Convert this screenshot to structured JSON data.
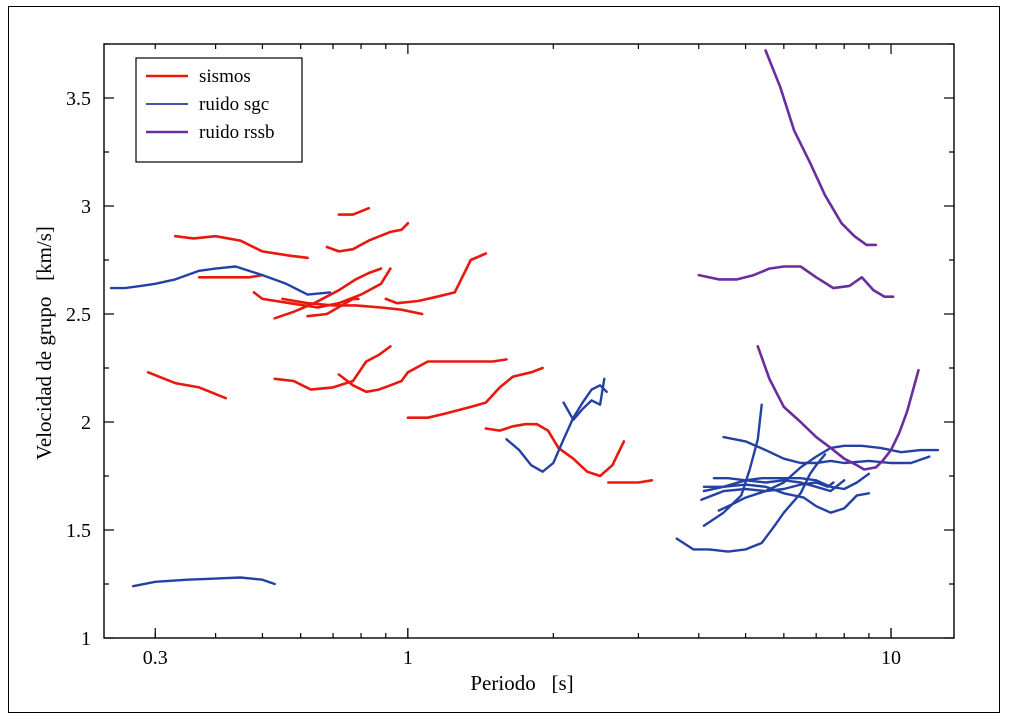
{
  "chart_data": {
    "type": "line",
    "xlabel": "Periodo   [s]",
    "ylabel": "Velocidad de grupo   [km/s]",
    "xscale": "log",
    "xlim": [
      0.235,
      13.5
    ],
    "ylim": [
      1.0,
      3.75
    ],
    "xticks": [
      {
        "value": 0.3,
        "label": "0.3"
      },
      {
        "value": 1,
        "label": "1"
      },
      {
        "value": 10,
        "label": "10"
      }
    ],
    "yticks": [
      {
        "value": 1,
        "label": "1"
      },
      {
        "value": 1.5,
        "label": "1.5"
      },
      {
        "value": 2,
        "label": "2"
      },
      {
        "value": 2.5,
        "label": "2.5"
      },
      {
        "value": 3,
        "label": "3"
      },
      {
        "value": 3.5,
        "label": "3.5"
      }
    ],
    "legend_position": "top-left",
    "grid": false,
    "series": [
      {
        "name": "sismos",
        "color": "#e8180f",
        "curves": [
          [
            [
              0.33,
              2.86
            ],
            [
              0.36,
              2.85
            ],
            [
              0.4,
              2.86
            ],
            [
              0.45,
              2.84
            ],
            [
              0.5,
              2.79
            ],
            [
              0.57,
              2.77
            ],
            [
              0.62,
              2.76
            ]
          ],
          [
            [
              0.72,
              2.96
            ],
            [
              0.77,
              2.96
            ],
            [
              0.83,
              2.99
            ]
          ],
          [
            [
              0.68,
              2.81
            ],
            [
              0.72,
              2.79
            ],
            [
              0.77,
              2.8
            ],
            [
              0.83,
              2.84
            ],
            [
              0.92,
              2.88
            ],
            [
              0.97,
              2.89
            ],
            [
              1.0,
              2.92
            ]
          ],
          [
            [
              0.37,
              2.67
            ],
            [
              0.42,
              2.67
            ],
            [
              0.47,
              2.67
            ],
            [
              0.5,
              2.68
            ]
          ],
          [
            [
              0.53,
              2.48
            ],
            [
              0.58,
              2.51
            ],
            [
              0.64,
              2.55
            ],
            [
              0.72,
              2.61
            ],
            [
              0.78,
              2.66
            ],
            [
              0.83,
              2.69
            ],
            [
              0.88,
              2.71
            ]
          ],
          [
            [
              0.48,
              2.6
            ],
            [
              0.5,
              2.57
            ],
            [
              0.57,
              2.55
            ],
            [
              0.65,
              2.53
            ],
            [
              0.72,
              2.55
            ],
            [
              0.8,
              2.59
            ],
            [
              0.88,
              2.64
            ],
            [
              0.92,
              2.71
            ]
          ],
          [
            [
              0.55,
              2.57
            ],
            [
              0.62,
              2.55
            ],
            [
              0.7,
              2.54
            ],
            [
              0.78,
              2.54
            ],
            [
              0.88,
              2.53
            ],
            [
              0.97,
              2.52
            ],
            [
              1.07,
              2.5
            ]
          ],
          [
            [
              0.62,
              2.49
            ],
            [
              0.68,
              2.5
            ],
            [
              0.73,
              2.54
            ],
            [
              0.77,
              2.57
            ],
            [
              0.79,
              2.57
            ]
          ],
          [
            [
              0.9,
              2.57
            ],
            [
              0.95,
              2.55
            ],
            [
              1.05,
              2.56
            ],
            [
              1.15,
              2.58
            ],
            [
              1.25,
              2.6
            ],
            [
              1.35,
              2.75
            ],
            [
              1.45,
              2.78
            ]
          ],
          [
            [
              0.29,
              2.23
            ],
            [
              0.33,
              2.18
            ],
            [
              0.37,
              2.16
            ],
            [
              0.42,
              2.11
            ]
          ],
          [
            [
              0.53,
              2.2
            ],
            [
              0.58,
              2.19
            ],
            [
              0.63,
              2.15
            ],
            [
              0.7,
              2.16
            ],
            [
              0.77,
              2.19
            ],
            [
              0.82,
              2.28
            ],
            [
              0.87,
              2.31
            ],
            [
              0.92,
              2.35
            ]
          ],
          [
            [
              0.72,
              2.22
            ],
            [
              0.77,
              2.17
            ],
            [
              0.82,
              2.14
            ],
            [
              0.87,
              2.15
            ],
            [
              0.92,
              2.17
            ],
            [
              0.97,
              2.19
            ],
            [
              1.0,
              2.23
            ],
            [
              1.1,
              2.28
            ],
            [
              1.3,
              2.28
            ],
            [
              1.5,
              2.28
            ],
            [
              1.6,
              2.29
            ]
          ],
          [
            [
              1.0,
              2.02
            ],
            [
              1.1,
              2.02
            ],
            [
              1.2,
              2.04
            ],
            [
              1.35,
              2.07
            ],
            [
              1.45,
              2.09
            ],
            [
              1.55,
              2.16
            ],
            [
              1.65,
              2.21
            ],
            [
              1.8,
              2.23
            ],
            [
              1.9,
              2.25
            ]
          ],
          [
            [
              1.45,
              1.97
            ],
            [
              1.55,
              1.96
            ],
            [
              1.65,
              1.98
            ],
            [
              1.75,
              1.99
            ],
            [
              1.85,
              1.99
            ],
            [
              1.95,
              1.96
            ],
            [
              2.05,
              1.88
            ],
            [
              2.2,
              1.83
            ],
            [
              2.35,
              1.77
            ],
            [
              2.5,
              1.75
            ],
            [
              2.65,
              1.8
            ],
            [
              2.8,
              1.91
            ]
          ],
          [
            [
              2.6,
              1.72
            ],
            [
              2.8,
              1.72
            ],
            [
              3.0,
              1.72
            ],
            [
              3.2,
              1.73
            ]
          ]
        ]
      },
      {
        "name": "ruido sgc",
        "color": "#2341a3",
        "curves": [
          [
            [
              0.243,
              2.62
            ],
            [
              0.26,
              2.62
            ],
            [
              0.28,
              2.63
            ],
            [
              0.3,
              2.64
            ],
            [
              0.33,
              2.66
            ],
            [
              0.37,
              2.7
            ],
            [
              0.4,
              2.71
            ],
            [
              0.44,
              2.72
            ],
            [
              0.5,
              2.68
            ],
            [
              0.56,
              2.64
            ],
            [
              0.62,
              2.59
            ],
            [
              0.69,
              2.6
            ]
          ],
          [
            [
              0.27,
              1.24
            ],
            [
              0.3,
              1.26
            ],
            [
              0.35,
              1.27
            ],
            [
              0.4,
              1.275
            ],
            [
              0.45,
              1.28
            ],
            [
              0.5,
              1.27
            ],
            [
              0.53,
              1.25
            ]
          ],
          [
            [
              1.6,
              1.92
            ],
            [
              1.7,
              1.87
            ],
            [
              1.8,
              1.8
            ],
            [
              1.9,
              1.77
            ],
            [
              2.0,
              1.81
            ],
            [
              2.1,
              1.92
            ],
            [
              2.2,
              2.02
            ],
            [
              2.3,
              2.09
            ],
            [
              2.4,
              2.15
            ],
            [
              2.5,
              2.17
            ],
            [
              2.58,
              2.14
            ]
          ],
          [
            [
              2.1,
              2.09
            ],
            [
              2.2,
              2.01
            ],
            [
              2.3,
              2.06
            ],
            [
              2.4,
              2.1
            ],
            [
              2.5,
              2.08
            ],
            [
              2.55,
              2.2
            ]
          ],
          [
            [
              3.6,
              1.46
            ],
            [
              3.9,
              1.41
            ],
            [
              4.2,
              1.41
            ],
            [
              4.6,
              1.4
            ],
            [
              5.0,
              1.41
            ],
            [
              5.4,
              1.44
            ],
            [
              5.7,
              1.51
            ],
            [
              6.0,
              1.58
            ],
            [
              6.5,
              1.67
            ],
            [
              6.8,
              1.76
            ],
            [
              7.0,
              1.8
            ],
            [
              7.3,
              1.85
            ]
          ],
          [
            [
              4.3,
              1.74
            ],
            [
              4.6,
              1.74
            ],
            [
              5.0,
              1.73
            ],
            [
              5.5,
              1.72
            ],
            [
              6.0,
              1.73
            ],
            [
              6.5,
              1.72
            ],
            [
              7.0,
              1.7
            ],
            [
              7.5,
              1.68
            ],
            [
              8.0,
              1.73
            ]
          ],
          [
            [
              4.1,
              1.7
            ],
            [
              4.5,
              1.7
            ],
            [
              5.0,
              1.71
            ],
            [
              5.5,
              1.7
            ],
            [
              6.0,
              1.67
            ],
            [
              6.6,
              1.65
            ],
            [
              7.0,
              1.61
            ],
            [
              7.5,
              1.58
            ],
            [
              8.0,
              1.6
            ],
            [
              8.5,
              1.66
            ],
            [
              9.0,
              1.67
            ]
          ],
          [
            [
              4.1,
              1.68
            ],
            [
              4.5,
              1.7
            ],
            [
              5.0,
              1.73
            ],
            [
              5.4,
              1.74
            ],
            [
              5.9,
              1.74
            ],
            [
              6.5,
              1.74
            ],
            [
              7.0,
              1.73
            ],
            [
              7.5,
              1.7
            ],
            [
              8.0,
              1.69
            ],
            [
              8.5,
              1.72
            ],
            [
              9.0,
              1.76
            ]
          ],
          [
            [
              4.05,
              1.64
            ],
            [
              4.5,
              1.68
            ],
            [
              5.0,
              1.69
            ],
            [
              5.5,
              1.68
            ],
            [
              6.0,
              1.69
            ],
            [
              6.5,
              1.71
            ],
            [
              7.0,
              1.72
            ],
            [
              7.4,
              1.7
            ],
            [
              7.6,
              1.72
            ]
          ],
          [
            [
              4.4,
              1.59
            ],
            [
              4.7,
              1.62
            ],
            [
              5.0,
              1.65
            ],
            [
              5.5,
              1.68
            ],
            [
              6.0,
              1.72
            ],
            [
              6.5,
              1.79
            ],
            [
              7.0,
              1.84
            ],
            [
              7.5,
              1.88
            ],
            [
              8.0,
              1.89
            ],
            [
              8.7,
              1.89
            ],
            [
              9.5,
              1.88
            ],
            [
              10.5,
              1.86
            ],
            [
              11.5,
              1.87
            ],
            [
              12.5,
              1.87
            ]
          ],
          [
            [
              4.5,
              1.93
            ],
            [
              5.0,
              1.91
            ],
            [
              5.5,
              1.87
            ],
            [
              6.0,
              1.83
            ],
            [
              6.5,
              1.81
            ],
            [
              7.0,
              1.81
            ],
            [
              7.5,
              1.82
            ],
            [
              8.0,
              1.81
            ],
            [
              9.0,
              1.82
            ],
            [
              10.0,
              1.81
            ],
            [
              11.0,
              1.81
            ],
            [
              12.0,
              1.84
            ]
          ],
          [
            [
              4.1,
              1.52
            ],
            [
              4.5,
              1.58
            ],
            [
              4.9,
              1.66
            ],
            [
              5.1,
              1.78
            ],
            [
              5.3,
              1.92
            ],
            [
              5.4,
              2.08
            ]
          ]
        ]
      },
      {
        "name": "ruido rssb",
        "color": "#6a2d9e",
        "curves": [
          [
            [
              5.5,
              3.72
            ],
            [
              5.9,
              3.55
            ],
            [
              6.3,
              3.35
            ],
            [
              6.8,
              3.2
            ],
            [
              7.3,
              3.05
            ],
            [
              7.9,
              2.92
            ],
            [
              8.4,
              2.86
            ],
            [
              8.9,
              2.82
            ],
            [
              9.3,
              2.82
            ]
          ],
          [
            [
              4.0,
              2.68
            ],
            [
              4.4,
              2.66
            ],
            [
              4.8,
              2.66
            ],
            [
              5.2,
              2.68
            ],
            [
              5.6,
              2.71
            ],
            [
              6.0,
              2.72
            ],
            [
              6.5,
              2.72
            ],
            [
              7.0,
              2.67
            ],
            [
              7.6,
              2.62
            ],
            [
              8.2,
              2.63
            ],
            [
              8.7,
              2.67
            ],
            [
              9.2,
              2.61
            ],
            [
              9.7,
              2.58
            ],
            [
              10.1,
              2.58
            ]
          ],
          [
            [
              5.3,
              2.35
            ],
            [
              5.6,
              2.2
            ],
            [
              6.0,
              2.07
            ],
            [
              6.5,
              2.0
            ],
            [
              7.0,
              1.93
            ],
            [
              7.5,
              1.88
            ],
            [
              8.0,
              1.83
            ],
            [
              8.5,
              1.8
            ],
            [
              8.8,
              1.78
            ],
            [
              9.3,
              1.79
            ],
            [
              9.6,
              1.82
            ],
            [
              10.0,
              1.87
            ],
            [
              10.4,
              1.95
            ],
            [
              10.8,
              2.05
            ],
            [
              11.4,
              2.24
            ]
          ]
        ]
      }
    ]
  }
}
